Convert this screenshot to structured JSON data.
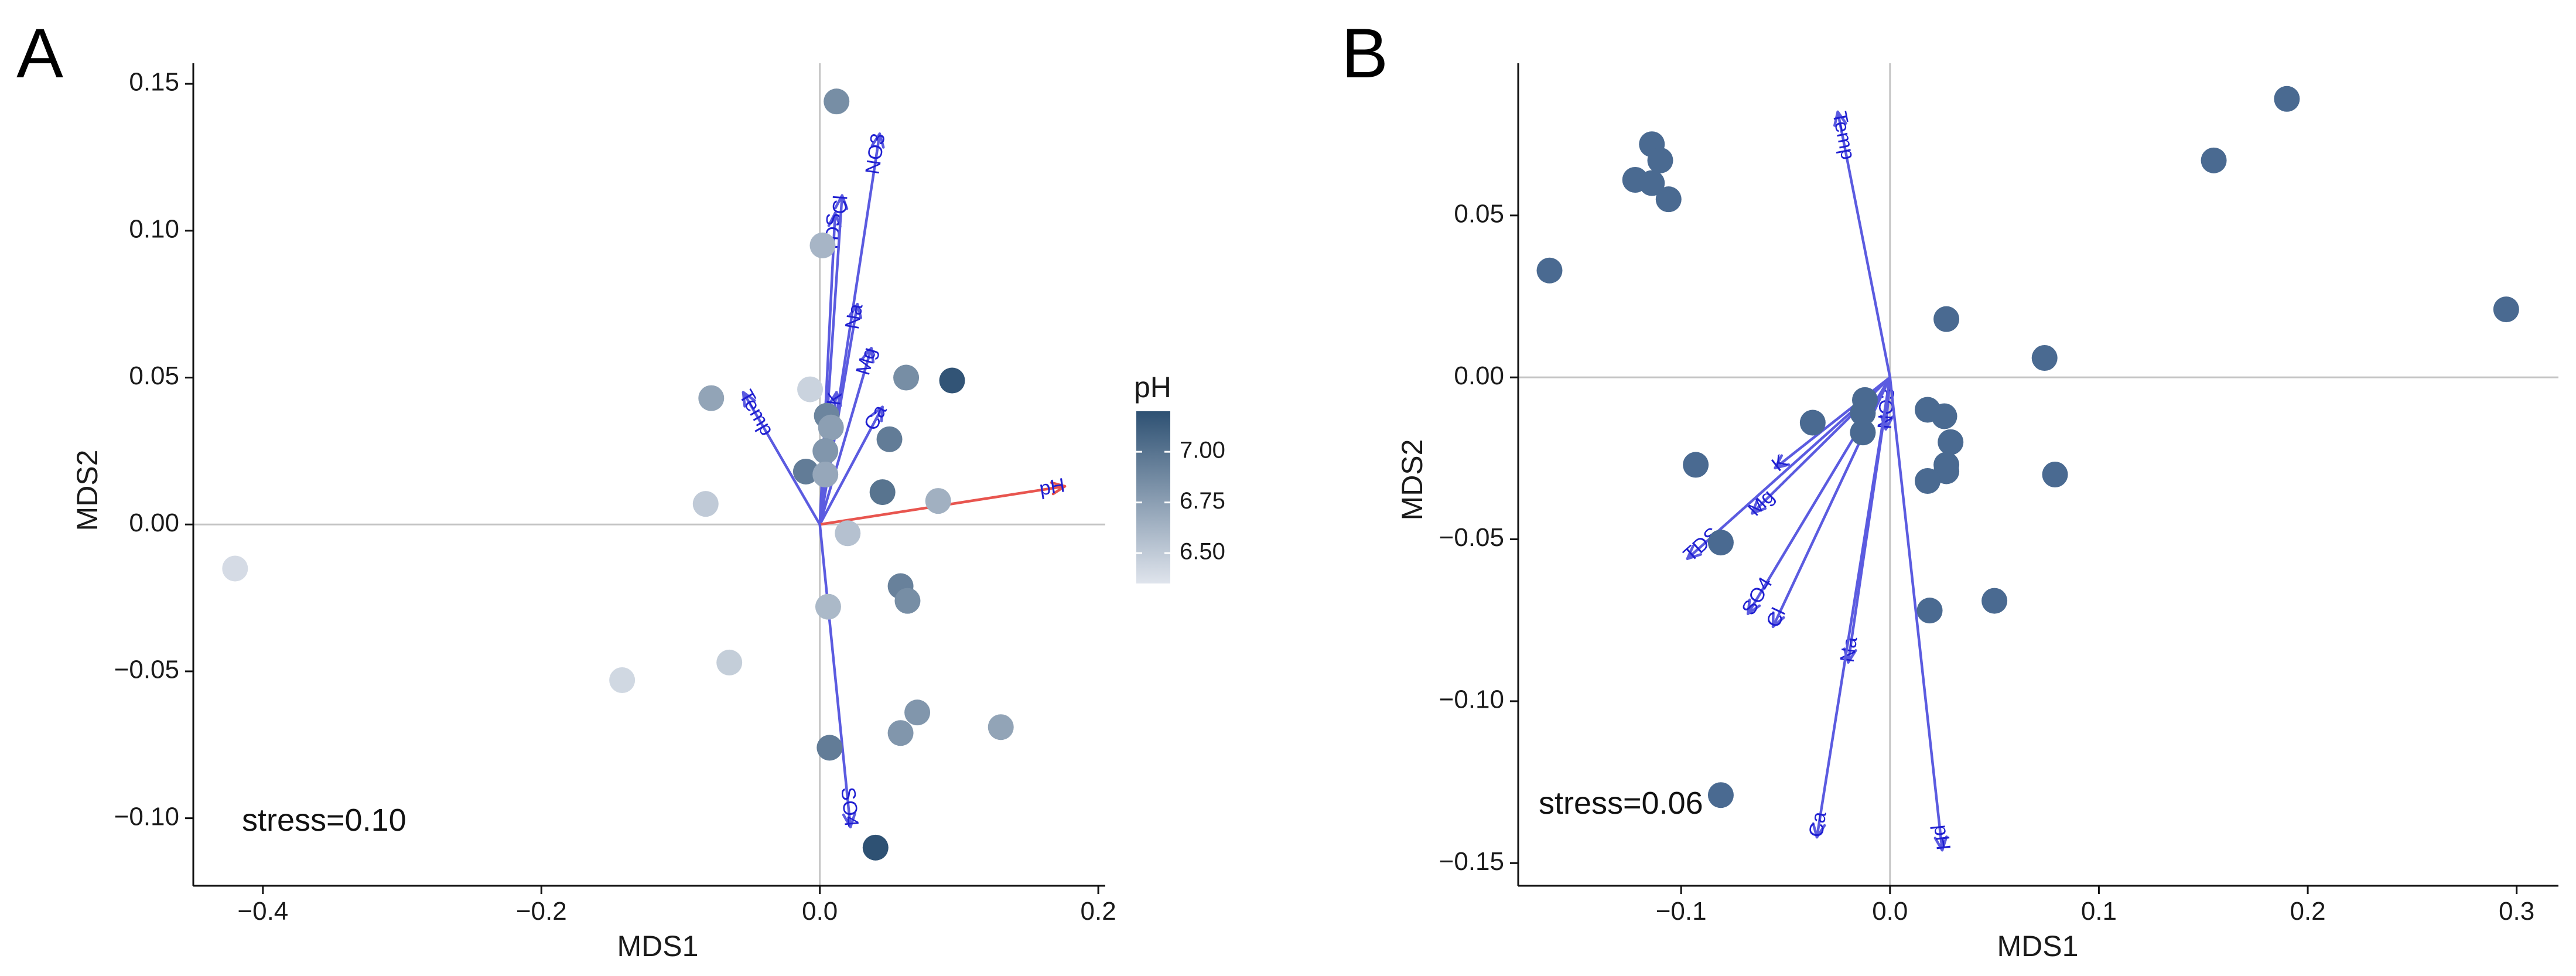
{
  "chart_data": [
    {
      "type": "scatter",
      "panel": "A",
      "xlabel": "MDS1",
      "ylabel": "MDS2",
      "xlim": [
        -0.45,
        0.205
      ],
      "ylim": [
        -0.123,
        0.157
      ],
      "xticks": [
        -0.4,
        -0.2,
        0.0,
        0.2
      ],
      "xtick_labels": [
        "−0.4",
        "−0.2",
        "0.0",
        "0.2"
      ],
      "yticks": [
        -0.1,
        -0.05,
        0.0,
        0.05,
        0.1,
        0.15
      ],
      "ytick_labels": [
        "−0.10",
        "−0.05",
        "0.00",
        "0.05",
        "0.10",
        "0.15"
      ],
      "stress": "stress=0.10",
      "legend": {
        "title": "pH",
        "min": 6.35,
        "max": 7.2,
        "ticks": [
          6.5,
          6.75,
          7.0
        ],
        "tick_labels": [
          "6.50",
          "6.75",
          "7.00"
        ],
        "color_low": "#dfe4ec",
        "color_high": "#2e5173"
      },
      "points": [
        {
          "x": 0.012,
          "y": 0.144,
          "ph": 6.85
        },
        {
          "x": 0.002,
          "y": 0.095,
          "ph": 6.62
        },
        {
          "x": -0.078,
          "y": 0.043,
          "ph": 6.72
        },
        {
          "x": -0.007,
          "y": 0.046,
          "ph": 6.45
        },
        {
          "x": 0.062,
          "y": 0.05,
          "ph": 6.85
        },
        {
          "x": 0.095,
          "y": 0.049,
          "ph": 7.18
        },
        {
          "x": 0.005,
          "y": 0.037,
          "ph": 6.9
        },
        {
          "x": 0.008,
          "y": 0.033,
          "ph": 6.75
        },
        {
          "x": 0.05,
          "y": 0.029,
          "ph": 6.95
        },
        {
          "x": 0.004,
          "y": 0.025,
          "ph": 6.8
        },
        {
          "x": -0.01,
          "y": 0.018,
          "ph": 6.95
        },
        {
          "x": 0.004,
          "y": 0.017,
          "ph": 6.7
        },
        {
          "x": 0.045,
          "y": 0.011,
          "ph": 7.0
        },
        {
          "x": 0.085,
          "y": 0.008,
          "ph": 6.65
        },
        {
          "x": -0.082,
          "y": 0.007,
          "ph": 6.5
        },
        {
          "x": 0.02,
          "y": -0.003,
          "ph": 6.55
        },
        {
          "x": -0.42,
          "y": -0.015,
          "ph": 6.4
        },
        {
          "x": 0.058,
          "y": -0.021,
          "ph": 6.92
        },
        {
          "x": 0.063,
          "y": -0.026,
          "ph": 6.85
        },
        {
          "x": 0.006,
          "y": -0.028,
          "ph": 6.6
        },
        {
          "x": -0.142,
          "y": -0.053,
          "ph": 6.42
        },
        {
          "x": -0.065,
          "y": -0.047,
          "ph": 6.48
        },
        {
          "x": 0.07,
          "y": -0.064,
          "ph": 6.8
        },
        {
          "x": 0.058,
          "y": -0.071,
          "ph": 6.8
        },
        {
          "x": 0.13,
          "y": -0.069,
          "ph": 6.72
        },
        {
          "x": 0.007,
          "y": -0.076,
          "ph": 6.95
        },
        {
          "x": 0.04,
          "y": -0.11,
          "ph": 7.2
        }
      ],
      "vectors": [
        {
          "name": "NO3",
          "x": 0.043,
          "y": 0.133,
          "color": "#5b5be0",
          "label_color": "#1f1fd1"
        },
        {
          "name": "TDS",
          "x": 0.011,
          "y": 0.106,
          "color": "#5b5be0",
          "label_color": "#1f1fd1"
        },
        {
          "name": "Cl",
          "x": 0.016,
          "y": 0.112,
          "color": "#5b5be0",
          "label_color": "#1f1fd1"
        },
        {
          "name": "Na",
          "x": 0.027,
          "y": 0.075,
          "color": "#5b5be0",
          "label_color": "#1f1fd1"
        },
        {
          "name": "Mg",
          "x": 0.037,
          "y": 0.06,
          "color": "#5b5be0",
          "label_color": "#1f1fd1"
        },
        {
          "name": "K",
          "x": 0.012,
          "y": 0.045,
          "color": "#5b5be0",
          "label_color": "#1f1fd1"
        },
        {
          "name": "Ca",
          "x": 0.045,
          "y": 0.04,
          "color": "#5b5be0",
          "label_color": "#1f1fd1"
        },
        {
          "name": "Temp",
          "x": -0.055,
          "y": 0.045,
          "color": "#5b5be0",
          "label_color": "#1f1fd1"
        },
        {
          "name": "pH",
          "x": 0.176,
          "y": 0.013,
          "color": "#e8554f",
          "label_color": "#1f1fd1"
        },
        {
          "name": "SO4",
          "x": 0.022,
          "y": -0.103,
          "color": "#5b5be0",
          "label_color": "#1f1fd1"
        }
      ]
    },
    {
      "type": "scatter",
      "panel": "B",
      "xlabel": "MDS1",
      "ylabel": "MDS2",
      "xlim": [
        -0.178,
        0.32
      ],
      "ylim": [
        -0.157,
        0.097
      ],
      "xticks": [
        -0.1,
        0.0,
        0.1,
        0.2,
        0.3
      ],
      "xtick_labels": [
        "−0.1",
        "0.0",
        "0.1",
        "0.2",
        "0.3"
      ],
      "yticks": [
        -0.15,
        -0.1,
        -0.05,
        0.0,
        0.05
      ],
      "ytick_labels": [
        "−0.15",
        "−0.10",
        "−0.05",
        "0.00",
        "0.05"
      ],
      "stress": "stress=0.06",
      "point_color": "#4a6a91",
      "points": [
        {
          "x": -0.163,
          "y": 0.033
        },
        {
          "x": -0.122,
          "y": 0.061
        },
        {
          "x": -0.114,
          "y": 0.072
        },
        {
          "x": -0.11,
          "y": 0.067
        },
        {
          "x": -0.114,
          "y": 0.06
        },
        {
          "x": -0.106,
          "y": 0.055
        },
        {
          "x": 0.19,
          "y": 0.086
        },
        {
          "x": 0.155,
          "y": 0.067
        },
        {
          "x": 0.295,
          "y": 0.021
        },
        {
          "x": 0.027,
          "y": 0.018
        },
        {
          "x": 0.074,
          "y": 0.006
        },
        {
          "x": -0.012,
          "y": -0.007
        },
        {
          "x": -0.013,
          "y": -0.011
        },
        {
          "x": -0.037,
          "y": -0.014
        },
        {
          "x": -0.013,
          "y": -0.017
        },
        {
          "x": 0.018,
          "y": -0.01
        },
        {
          "x": 0.026,
          "y": -0.012
        },
        {
          "x": 0.029,
          "y": -0.02
        },
        {
          "x": -0.093,
          "y": -0.027
        },
        {
          "x": 0.027,
          "y": -0.027
        },
        {
          "x": 0.027,
          "y": -0.029
        },
        {
          "x": 0.018,
          "y": -0.032
        },
        {
          "x": 0.079,
          "y": -0.03
        },
        {
          "x": -0.081,
          "y": -0.051
        },
        {
          "x": 0.05,
          "y": -0.069
        },
        {
          "x": 0.019,
          "y": -0.072
        },
        {
          "x": -0.081,
          "y": -0.129
        }
      ],
      "vectors": [
        {
          "name": "Temp",
          "x": -0.025,
          "y": 0.082,
          "color": "#5b5be0",
          "label_color": "#1f1fd1"
        },
        {
          "name": "NO3",
          "x": -0.002,
          "y": -0.016,
          "color": "#5b5be0",
          "label_color": "#1f1fd1"
        },
        {
          "name": "K",
          "x": -0.055,
          "y": -0.028,
          "color": "#5b5be0",
          "label_color": "#1f1fd1"
        },
        {
          "name": "Mg",
          "x": -0.066,
          "y": -0.042,
          "color": "#5b5be0",
          "label_color": "#1f1fd1"
        },
        {
          "name": "TDS",
          "x": -0.097,
          "y": -0.056,
          "color": "#5b5be0",
          "label_color": "#1f1fd1"
        },
        {
          "name": "SO4",
          "x": -0.068,
          "y": -0.073,
          "color": "#5b5be0",
          "label_color": "#1f1fd1"
        },
        {
          "name": "Cl",
          "x": -0.056,
          "y": -0.077,
          "color": "#5b5be0",
          "label_color": "#1f1fd1"
        },
        {
          "name": "Na",
          "x": -0.02,
          "y": -0.088,
          "color": "#5b5be0",
          "label_color": "#1f1fd1"
        },
        {
          "name": "Ca",
          "x": -0.035,
          "y": -0.142,
          "color": "#5b5be0",
          "label_color": "#1f1fd1"
        },
        {
          "name": "pH",
          "x": 0.025,
          "y": -0.146,
          "color": "#5b5be0",
          "label_color": "#1f1fd1"
        }
      ]
    }
  ]
}
